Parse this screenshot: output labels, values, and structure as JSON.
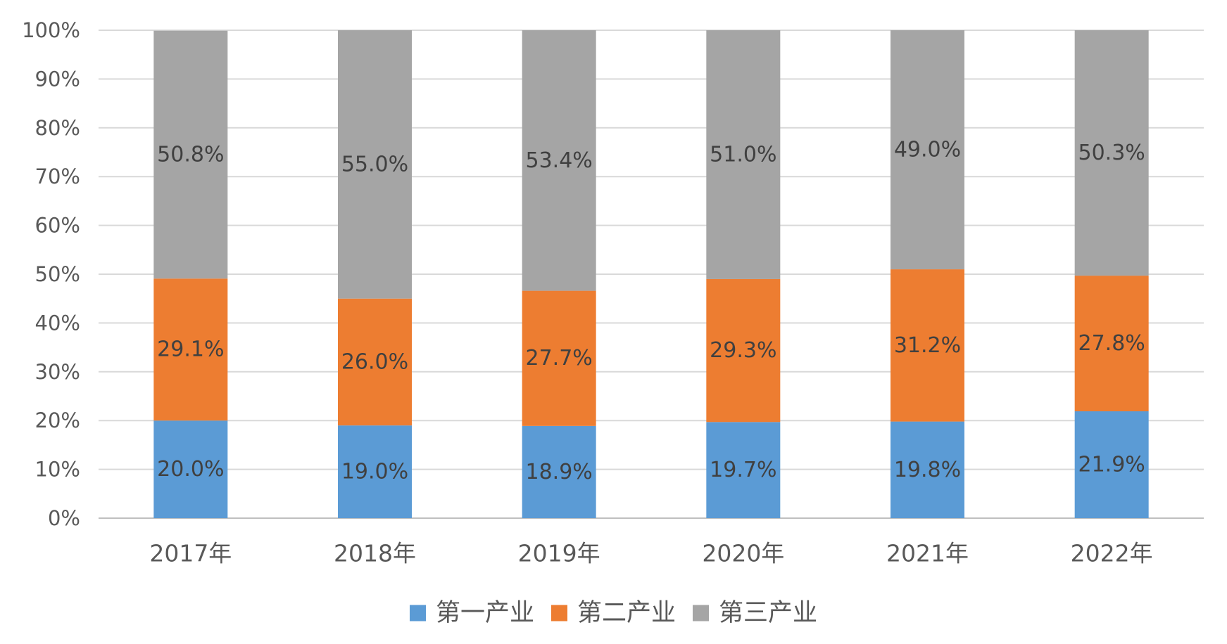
{
  "chart_data": {
    "type": "bar",
    "stacked": true,
    "categories": [
      "2017年",
      "2018年",
      "2019年",
      "2020年",
      "2021年",
      "2022年"
    ],
    "series": [
      {
        "name": "第一产业",
        "color": "#5B9BD5",
        "values": [
          20.0,
          19.0,
          18.9,
          19.7,
          19.8,
          21.9
        ],
        "labels": [
          "20.0%",
          "19.0%",
          "18.9%",
          "19.7%",
          "19.8%",
          "21.9%"
        ]
      },
      {
        "name": "第二产业",
        "color": "#ED7D31",
        "values": [
          29.1,
          26.0,
          27.7,
          29.3,
          31.2,
          27.8
        ],
        "labels": [
          "29.1%",
          "26.0%",
          "27.7%",
          "29.3%",
          "31.2%",
          "27.8%"
        ]
      },
      {
        "name": "第三产业",
        "color": "#A5A5A5",
        "values": [
          50.8,
          55.0,
          53.4,
          51.0,
          49.0,
          50.3
        ],
        "labels": [
          "50.8%",
          "55.0%",
          "53.4%",
          "51.0%",
          "49.0%",
          "50.3%"
        ]
      }
    ],
    "yticks": [
      "0%",
      "10%",
      "20%",
      "30%",
      "40%",
      "50%",
      "60%",
      "70%",
      "80%",
      "90%",
      "100%"
    ],
    "ylim": [
      0,
      100
    ],
    "grid": true,
    "legend_position": "bottom",
    "title": "",
    "xlabel": "",
    "ylabel": ""
  }
}
